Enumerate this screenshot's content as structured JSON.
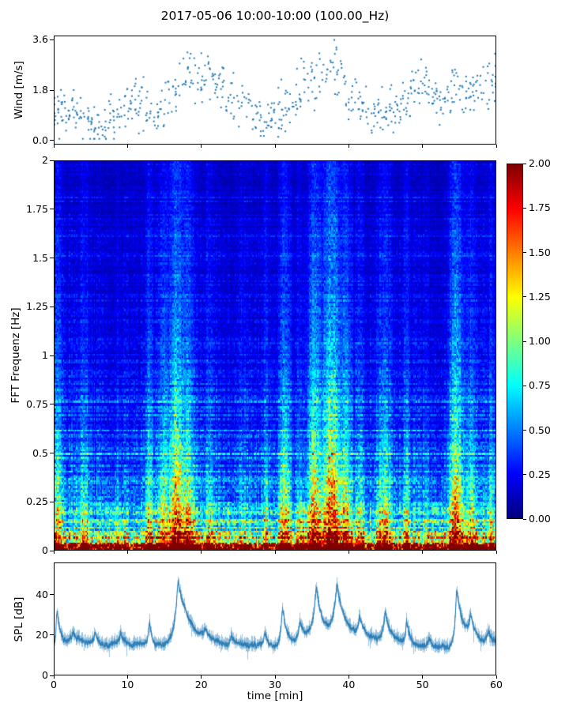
{
  "figure": {
    "title": "2017-05-06 10:00-10:00 (100.00_Hz)",
    "background": "#ffffff",
    "text_color": "#000000"
  },
  "chart_data": [
    {
      "type": "scatter",
      "name": "wind",
      "ylabel": "Wind [m/s]",
      "xlim": [
        0,
        60
      ],
      "ylim": [
        -0.15,
        3.75
      ],
      "yticks": {
        "values": [
          0.0,
          1.8,
          3.6
        ],
        "labels": [
          "0.0",
          "1.8",
          "3.6"
        ]
      },
      "marker_color": "#1f77b4",
      "spread": 0.45,
      "mean_by_minute": [
        1.1,
        0.9,
        1.0,
        1.1,
        0.8,
        0.4,
        0.3,
        0.35,
        0.6,
        1.0,
        1.3,
        1.5,
        1.2,
        1.0,
        0.9,
        1.2,
        1.6,
        2.0,
        2.2,
        2.4,
        2.3,
        2.5,
        2.2,
        1.9,
        1.6,
        1.3,
        1.1,
        0.9,
        0.7,
        0.5,
        0.9,
        1.1,
        1.3,
        1.5,
        1.8,
        2.0,
        2.4,
        2.2,
        2.6,
        2.2,
        1.8,
        1.5,
        1.2,
        1.0,
        1.1,
        1.3,
        1.2,
        1.0,
        1.4,
        1.8,
        2.1,
        1.7,
        1.4,
        1.5,
        1.7,
        1.9,
        1.6,
        2.0,
        1.8,
        2.1,
        2.2
      ],
      "seed": 42
    },
    {
      "type": "heatmap",
      "name": "spectrogram",
      "ylabel": "FFT Frequenz [Hz]",
      "xlim": [
        0,
        60
      ],
      "ylim": [
        0,
        2
      ],
      "yticks": {
        "values": [
          0,
          0.25,
          0.5,
          0.75,
          1,
          1.25,
          1.5,
          1.75,
          2
        ],
        "labels": [
          "0",
          "0.25",
          "0.5",
          "0.75",
          "1",
          "1.25",
          "1.5",
          "1.75",
          "2"
        ]
      },
      "colormap": "jet",
      "clim": [
        0,
        2
      ],
      "colorbar": {
        "ticks": {
          "values": [
            0,
            0.25,
            0.5,
            0.75,
            1,
            1.25,
            1.5,
            1.75,
            2
          ],
          "labels": [
            "0.00",
            "0.25",
            "0.50",
            "0.75",
            "1.00",
            "1.25",
            "1.50",
            "1.75",
            "2.00"
          ]
        }
      },
      "grid": {
        "rows": 200,
        "cols": 375
      },
      "base_profile": {
        "a1": 1.9,
        "tau1": 0.045,
        "a2": 0.5,
        "tau2": 0.35,
        "a3": 0.22,
        "tau3": 1.5,
        "floor": 0.06
      },
      "events": [
        [
          0.4,
          0.5,
          0.6,
          0.55
        ],
        [
          4,
          0.7,
          0.45,
          0.45
        ],
        [
          8.5,
          0.5,
          0.25,
          0.35
        ],
        [
          12.8,
          0.5,
          0.55,
          0.5
        ],
        [
          14.8,
          0.6,
          0.6,
          0.55
        ],
        [
          16.6,
          1.0,
          1.05,
          0.65
        ],
        [
          18.2,
          0.7,
          0.7,
          0.5
        ],
        [
          21,
          0.5,
          0.35,
          0.4
        ],
        [
          25.5,
          0.4,
          0.25,
          0.35
        ],
        [
          28.8,
          0.4,
          0.35,
          0.4
        ],
        [
          31.3,
          0.7,
          0.75,
          0.6
        ],
        [
          33.3,
          0.5,
          0.45,
          0.45
        ],
        [
          35.2,
          0.9,
          0.95,
          0.7
        ],
        [
          37.6,
          1.1,
          1.1,
          0.75
        ],
        [
          39.6,
          0.7,
          0.8,
          0.6
        ],
        [
          41.5,
          0.5,
          0.4,
          0.4
        ],
        [
          44.8,
          0.9,
          0.6,
          0.5
        ],
        [
          47.9,
          0.5,
          0.45,
          0.4
        ],
        [
          50.5,
          0.4,
          0.3,
          0.35
        ],
        [
          54.6,
          0.9,
          1.0,
          0.7
        ],
        [
          56.6,
          0.6,
          0.6,
          0.5
        ],
        [
          59.3,
          0.5,
          0.4,
          0.4
        ]
      ],
      "event_broadband": 0.15,
      "dips": [
        [
          8,
          1.5,
          0.22
        ],
        [
          23.5,
          1.0,
          0.2
        ],
        [
          33.8,
          1.2,
          0.35
        ],
        [
          52,
          1.2,
          0.25
        ]
      ],
      "seed": 7
    },
    {
      "type": "line",
      "name": "spl",
      "ylabel": "SPL [dB]",
      "xlabel": "time [min]",
      "xlim": [
        0,
        60
      ],
      "ylim": [
        0,
        56
      ],
      "yticks": {
        "values": [
          0,
          20,
          40
        ],
        "labels": [
          "0",
          "20",
          "40"
        ]
      },
      "xticks": {
        "values": [
          0,
          10,
          20,
          30,
          40,
          50,
          60
        ],
        "labels": [
          "0",
          "10",
          "20",
          "30",
          "40",
          "50",
          "60"
        ]
      },
      "line_color": "#1f77b4",
      "baseline": 15.5,
      "noise_band": 3.5,
      "peaks": [
        [
          0.3,
          20,
          0.1,
          0.4
        ],
        [
          2.5,
          5,
          0.2,
          0.4
        ],
        [
          5.5,
          6,
          0.2,
          0.5
        ],
        [
          9,
          5,
          0.2,
          0.4
        ],
        [
          12.9,
          13,
          0.15,
          0.35
        ],
        [
          16.8,
          33,
          0.5,
          1.6
        ],
        [
          20.5,
          4,
          0.3,
          0.5
        ],
        [
          24,
          5,
          0.2,
          0.4
        ],
        [
          28.6,
          7,
          0.15,
          0.35
        ],
        [
          31,
          21,
          0.25,
          0.7
        ],
        [
          33.4,
          12,
          0.3,
          0.6
        ],
        [
          35.6,
          26,
          0.5,
          1.1
        ],
        [
          38.4,
          28,
          0.5,
          1.4
        ],
        [
          41.5,
          11,
          0.3,
          0.8
        ],
        [
          45,
          16,
          0.4,
          1.0
        ],
        [
          47.9,
          11,
          0.2,
          0.5
        ],
        [
          51,
          5,
          0.3,
          0.5
        ],
        [
          54.7,
          29,
          0.25,
          0.9
        ],
        [
          56.6,
          11,
          0.3,
          0.7
        ],
        [
          59,
          7,
          0.3,
          0.6
        ]
      ],
      "seed": 3
    }
  ]
}
